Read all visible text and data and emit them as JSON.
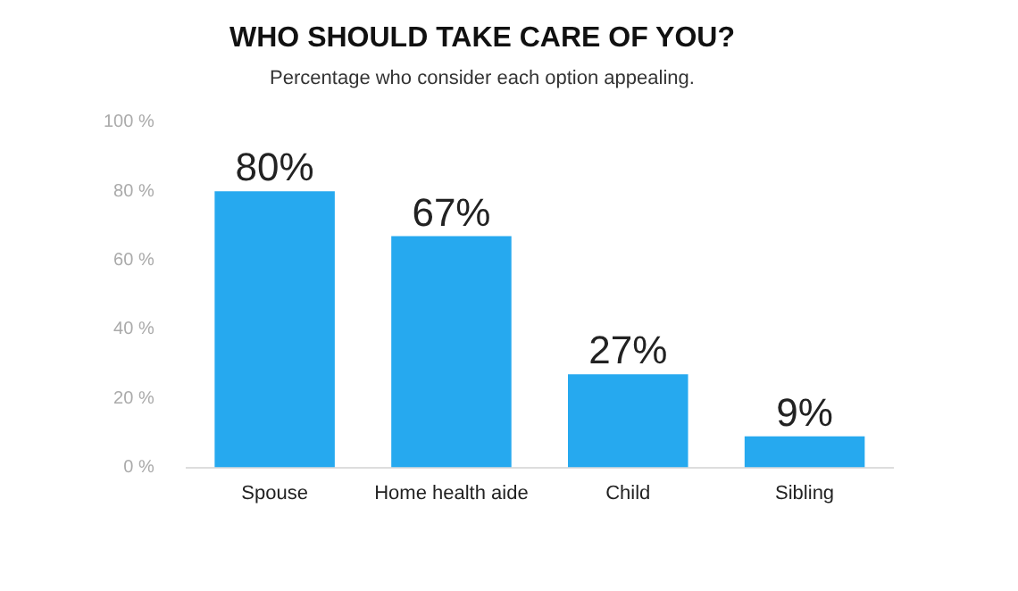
{
  "chart_data": {
    "type": "bar",
    "title": "WHO SHOULD TAKE CARE OF YOU?",
    "subtitle": "Percentage who consider each option appealing.",
    "categories": [
      "Spouse",
      "Home health aide",
      "Child",
      "Sibling"
    ],
    "values": [
      80,
      67,
      27,
      9
    ],
    "color": "#26a9ef",
    "value_labels": [
      "80%",
      "67%",
      "27%",
      "9%"
    ],
    "ylim": [
      0,
      100
    ],
    "yticks": [
      {
        "value": 0,
        "label": "0 %"
      },
      {
        "value": 20,
        "label": "20 %"
      },
      {
        "value": 40,
        "label": "40 %"
      },
      {
        "value": 60,
        "label": "60 %"
      },
      {
        "value": 80,
        "label": "80 %"
      },
      {
        "value": 100,
        "label": "100 %"
      }
    ],
    "grid": false,
    "legend": false
  }
}
